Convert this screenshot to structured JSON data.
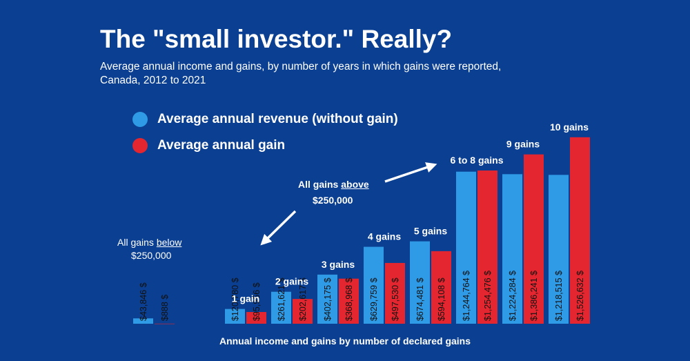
{
  "title": "The \"small investor.\" Really?",
  "subtitle_line1": "Average annual income and gains, by number of years in which gains were reported,",
  "subtitle_line2": "Canada, 2012 to 2021",
  "legend": [
    {
      "label": "Average annual revenue (without gain)",
      "color": "#2f9be6"
    },
    {
      "label": "Average annual gain",
      "color": "#e3262f"
    }
  ],
  "annotations": {
    "below_prefix": "All gains ",
    "below_word": "below",
    "below_amount": "$250,000",
    "above_prefix": "All gains ",
    "above_word": "above",
    "above_amount": "$250,000"
  },
  "chart_data": {
    "type": "bar",
    "categories": [
      "",
      "1 gain",
      "2 gains",
      "3 gains",
      "4 gains",
      "5 gains",
      "6 to 8 gains",
      "9 gains",
      "10 gains"
    ],
    "series": [
      {
        "name": "Average annual revenue (without gain)",
        "color": "#2f9be6",
        "values": [
          43846,
          120780,
          261621,
          402175,
          629759,
          674481,
          1244764,
          1224284,
          1218515
        ],
        "labels": [
          "$43,846 $",
          "$120,780 $",
          "$261,621 $",
          "$402,175 $",
          "$629,759 $",
          "$674,481 $",
          "$1,244,764 $",
          "$1,224,284 $",
          "$1,218,515 $"
        ]
      },
      {
        "name": "Average annual gain",
        "color": "#e3262f",
        "values": [
          888,
          95956,
          202617,
          368968,
          497530,
          594108,
          1254476,
          1386241,
          1526632
        ],
        "labels": [
          "$888 $",
          "$95,956 $",
          "$202,617 $",
          "$368,968 $",
          "$497,530 $",
          "$594,108 $",
          "$1,254,476 $",
          "$1,386,241 $",
          "$1,526,632 $"
        ]
      }
    ],
    "xlabel": "Annual income and gains by number of declared gains",
    "ylabel": "",
    "ylim": [
      0,
      1650000
    ]
  }
}
